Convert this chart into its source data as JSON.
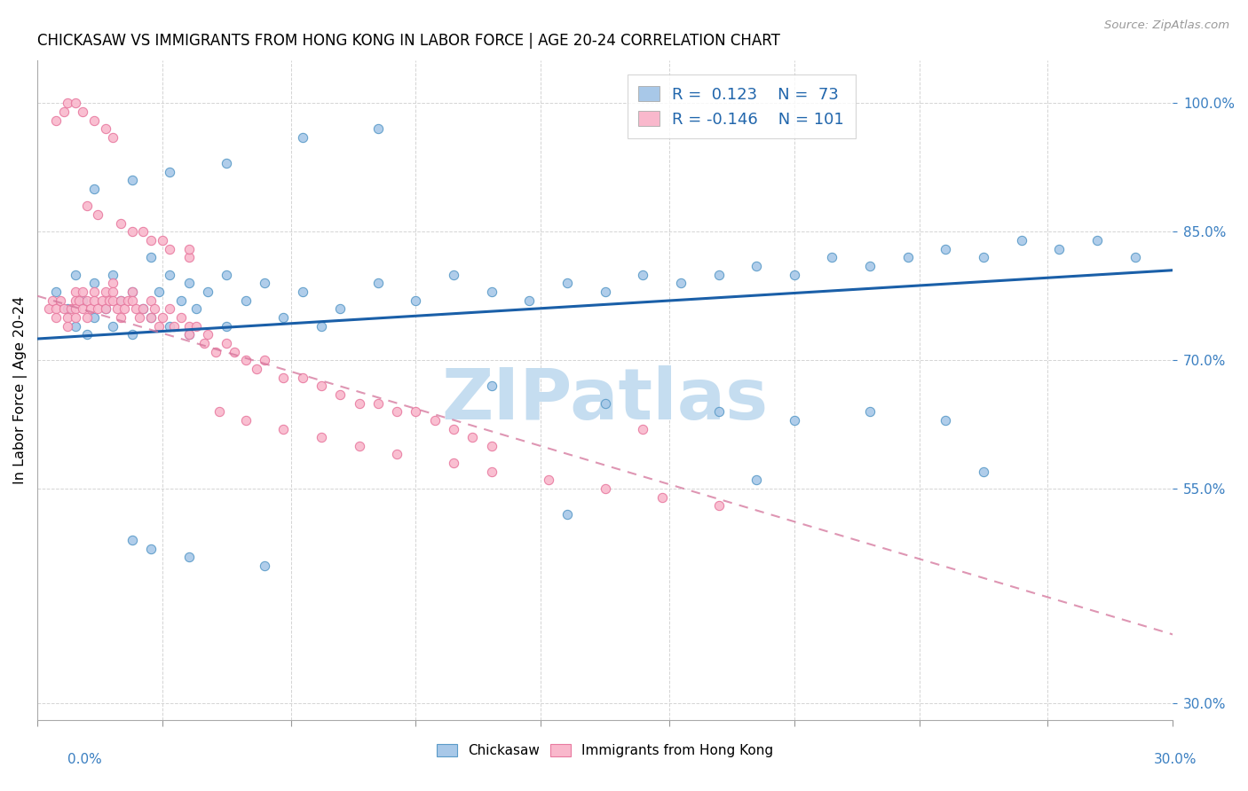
{
  "title": "CHICKASAW VS IMMIGRANTS FROM HONG KONG IN LABOR FORCE | AGE 20-24 CORRELATION CHART",
  "source": "Source: ZipAtlas.com",
  "ylabel": "In Labor Force | Age 20-24",
  "ytick_vals": [
    0.3,
    0.55,
    0.7,
    0.85,
    1.0
  ],
  "ytick_labels": [
    "30.0%",
    "55.0%",
    "70.0%",
    "85.0%",
    "100.0%"
  ],
  "xlim": [
    0.0,
    0.3
  ],
  "ylim": [
    0.28,
    1.05
  ],
  "blue_face": "#a8c8e8",
  "blue_edge": "#5b9bc8",
  "pink_face": "#f9b8cc",
  "pink_edge": "#e87aa0",
  "trend_blue_color": "#1a5fa8",
  "trend_pink_color": "#d4739a",
  "blue_x": [
    0.005,
    0.008,
    0.01,
    0.01,
    0.012,
    0.013,
    0.015,
    0.015,
    0.018,
    0.02,
    0.02,
    0.022,
    0.025,
    0.025,
    0.028,
    0.03,
    0.03,
    0.032,
    0.035,
    0.035,
    0.038,
    0.04,
    0.04,
    0.042,
    0.045,
    0.05,
    0.05,
    0.055,
    0.06,
    0.065,
    0.07,
    0.075,
    0.08,
    0.09,
    0.1,
    0.11,
    0.12,
    0.13,
    0.14,
    0.15,
    0.16,
    0.17,
    0.18,
    0.19,
    0.2,
    0.21,
    0.22,
    0.23,
    0.24,
    0.25,
    0.26,
    0.27,
    0.28,
    0.29,
    0.12,
    0.15,
    0.18,
    0.2,
    0.22,
    0.24,
    0.25,
    0.19,
    0.14,
    0.09,
    0.07,
    0.05,
    0.035,
    0.025,
    0.015,
    0.025,
    0.03,
    0.04,
    0.06
  ],
  "blue_y": [
    0.78,
    0.76,
    0.8,
    0.74,
    0.77,
    0.73,
    0.79,
    0.75,
    0.76,
    0.8,
    0.74,
    0.77,
    0.78,
    0.73,
    0.76,
    0.82,
    0.75,
    0.78,
    0.8,
    0.74,
    0.77,
    0.79,
    0.73,
    0.76,
    0.78,
    0.8,
    0.74,
    0.77,
    0.79,
    0.75,
    0.78,
    0.74,
    0.76,
    0.79,
    0.77,
    0.8,
    0.78,
    0.77,
    0.79,
    0.78,
    0.8,
    0.79,
    0.8,
    0.81,
    0.8,
    0.82,
    0.81,
    0.82,
    0.83,
    0.82,
    0.84,
    0.83,
    0.84,
    0.82,
    0.67,
    0.65,
    0.64,
    0.63,
    0.64,
    0.63,
    0.57,
    0.56,
    0.52,
    0.97,
    0.96,
    0.93,
    0.92,
    0.91,
    0.9,
    0.49,
    0.48,
    0.47,
    0.46
  ],
  "pink_x": [
    0.003,
    0.004,
    0.005,
    0.005,
    0.006,
    0.007,
    0.008,
    0.008,
    0.009,
    0.01,
    0.01,
    0.01,
    0.01,
    0.011,
    0.012,
    0.012,
    0.013,
    0.013,
    0.014,
    0.015,
    0.015,
    0.016,
    0.017,
    0.018,
    0.018,
    0.019,
    0.02,
    0.02,
    0.02,
    0.021,
    0.022,
    0.022,
    0.023,
    0.024,
    0.025,
    0.025,
    0.026,
    0.027,
    0.028,
    0.03,
    0.03,
    0.031,
    0.032,
    0.033,
    0.035,
    0.036,
    0.038,
    0.04,
    0.04,
    0.042,
    0.044,
    0.045,
    0.047,
    0.05,
    0.052,
    0.055,
    0.058,
    0.06,
    0.065,
    0.07,
    0.075,
    0.08,
    0.085,
    0.09,
    0.095,
    0.1,
    0.105,
    0.11,
    0.115,
    0.12,
    0.005,
    0.007,
    0.008,
    0.01,
    0.012,
    0.015,
    0.018,
    0.02,
    0.025,
    0.03,
    0.035,
    0.04,
    0.013,
    0.016,
    0.022,
    0.028,
    0.033,
    0.04,
    0.048,
    0.055,
    0.065,
    0.075,
    0.085,
    0.095,
    0.11,
    0.12,
    0.135,
    0.15,
    0.165,
    0.18,
    0.16
  ],
  "pink_y": [
    0.76,
    0.77,
    0.76,
    0.75,
    0.77,
    0.76,
    0.75,
    0.74,
    0.76,
    0.78,
    0.77,
    0.76,
    0.75,
    0.77,
    0.78,
    0.76,
    0.77,
    0.75,
    0.76,
    0.78,
    0.77,
    0.76,
    0.77,
    0.78,
    0.76,
    0.77,
    0.79,
    0.78,
    0.77,
    0.76,
    0.77,
    0.75,
    0.76,
    0.77,
    0.78,
    0.77,
    0.76,
    0.75,
    0.76,
    0.77,
    0.75,
    0.76,
    0.74,
    0.75,
    0.76,
    0.74,
    0.75,
    0.74,
    0.73,
    0.74,
    0.72,
    0.73,
    0.71,
    0.72,
    0.71,
    0.7,
    0.69,
    0.7,
    0.68,
    0.68,
    0.67,
    0.66,
    0.65,
    0.65,
    0.64,
    0.64,
    0.63,
    0.62,
    0.61,
    0.6,
    0.98,
    0.99,
    1.0,
    1.0,
    0.99,
    0.98,
    0.97,
    0.96,
    0.85,
    0.84,
    0.83,
    0.82,
    0.88,
    0.87,
    0.86,
    0.85,
    0.84,
    0.83,
    0.64,
    0.63,
    0.62,
    0.61,
    0.6,
    0.59,
    0.58,
    0.57,
    0.56,
    0.55,
    0.54,
    0.53,
    0.62
  ],
  "blue_trend_x": [
    0.0,
    0.3
  ],
  "blue_trend_y": [
    0.725,
    0.805
  ],
  "pink_trend_x": [
    0.0,
    0.3
  ],
  "pink_trend_y": [
    0.775,
    0.38
  ],
  "watermark_text": "ZIPatlas",
  "watermark_color": "#c5ddf0",
  "xtick_positions": [
    0.0,
    0.033,
    0.067,
    0.1,
    0.133,
    0.167,
    0.2,
    0.233,
    0.267,
    0.3
  ]
}
